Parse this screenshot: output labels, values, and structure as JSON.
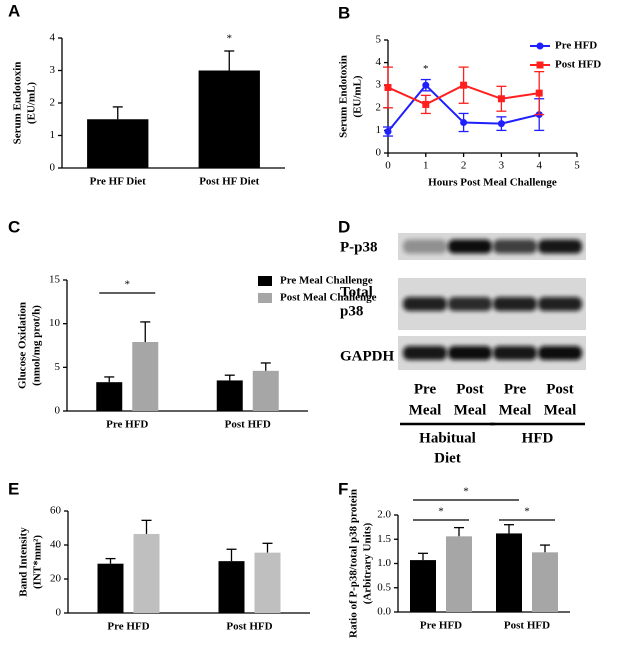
{
  "chart_data": [
    {
      "type": "bar",
      "panel": "A",
      "y_label": [
        "Serum Endotoxin",
        "(EU/mL)"
      ],
      "categories": [
        "Pre HF Diet",
        "Post HF Diet"
      ],
      "values": [
        1.5,
        3.0
      ],
      "errors": [
        0.38,
        0.6
      ],
      "color": "#000000",
      "ylim": [
        0,
        4
      ],
      "yticks": [
        0,
        1,
        2,
        3,
        4
      ],
      "annotations": [
        "*"
      ]
    },
    {
      "type": "line",
      "panel": "B",
      "y_label": [
        "Serum Endotoxin",
        "(EU/mL)"
      ],
      "x_label": "Hours Post Meal Challenge",
      "x": [
        0,
        1,
        2,
        3,
        4
      ],
      "series": [
        {
          "name": "Pre HFD",
          "color": "#1f1fff",
          "values": [
            0.95,
            3.0,
            1.35,
            1.3,
            1.7
          ],
          "errors": [
            0.2,
            0.25,
            0.4,
            0.3,
            0.7
          ]
        },
        {
          "name": "Post HFD",
          "color": "#ff1f1f",
          "values": [
            2.9,
            2.15,
            3.0,
            2.4,
            2.65
          ],
          "errors": [
            0.9,
            0.4,
            0.8,
            0.55,
            0.95
          ]
        }
      ],
      "xlim": [
        0,
        5
      ],
      "xticks": [
        0,
        1,
        2,
        3,
        4,
        5
      ],
      "ylim": [
        0,
        5
      ],
      "yticks": [
        0,
        1,
        2,
        3,
        4,
        5
      ],
      "legend": "upper right",
      "annotations": [
        "*"
      ]
    },
    {
      "type": "grouped_bar",
      "panel": "C",
      "y_label": [
        "Glucose  Oxidation",
        "(nmol/mg  prot/h)"
      ],
      "categories": [
        "Pre HFD",
        "Post HFD"
      ],
      "series": [
        {
          "name": "Pre Meal Challenge",
          "color": "#000000",
          "values": [
            3.3,
            3.5
          ],
          "errors": [
            0.6,
            0.6
          ]
        },
        {
          "name": "Post Meal Challenge",
          "color": "#a6a6a6",
          "values": [
            7.9,
            4.6
          ],
          "errors": [
            2.3,
            0.9
          ]
        }
      ],
      "ylim": [
        0,
        15
      ],
      "yticks": [
        0,
        5,
        10,
        15
      ],
      "legend": "upper right",
      "annotations": [
        "*"
      ]
    },
    {
      "type": "grouped_bar",
      "panel": "E",
      "y_label": [
        "Band Intensity",
        "(INT*mm²)"
      ],
      "categories": [
        "Pre HFD",
        "Post HFD"
      ],
      "series": [
        {
          "color": "#000000",
          "values": [
            29,
            30.5
          ],
          "errors": [
            3,
            7
          ]
        },
        {
          "color": "#bfbfbf",
          "values": [
            46.5,
            35.5
          ],
          "errors": [
            8,
            5.5
          ]
        }
      ],
      "ylim": [
        0,
        60
      ],
      "yticks": [
        0,
        20,
        40,
        60
      ]
    },
    {
      "type": "grouped_bar",
      "panel": "F",
      "y_label": [
        "Ratio of P-p38/total p38 protein",
        "(Arbitrary Units)"
      ],
      "categories": [
        "Pre HFD",
        "Post HFD"
      ],
      "series": [
        {
          "color": "#000000",
          "values": [
            1.07,
            1.62
          ],
          "errors": [
            0.14,
            0.18
          ]
        },
        {
          "color": "#a6a6a6",
          "values": [
            1.56,
            1.23
          ],
          "errors": [
            0.18,
            0.15
          ]
        }
      ],
      "ylim": [
        0,
        2.0
      ],
      "yticks": [
        {
          "value": 0,
          "label": "0.0"
        },
        {
          "value": 0.5,
          "label": "0.5"
        },
        {
          "value": 1,
          "label": "1.0"
        },
        {
          "value": 1.5,
          "label": "1.5"
        },
        {
          "value": 2,
          "label": "2.0"
        }
      ],
      "annotations": [
        "*",
        "*",
        "*"
      ]
    }
  ],
  "blot": {
    "panel": "D",
    "rows": [
      [
        "P-p38"
      ],
      [
        "Total",
        "p38"
      ],
      [
        "GAPDH"
      ]
    ],
    "lanes": [
      [
        "Pre",
        "Meal"
      ],
      [
        "Post",
        "Meal"
      ],
      [
        "Pre",
        "Meal"
      ],
      [
        "Post",
        "Meal"
      ]
    ],
    "groups": [
      [
        "Habitual",
        "Diet"
      ],
      [
        "HFD"
      ]
    ]
  }
}
